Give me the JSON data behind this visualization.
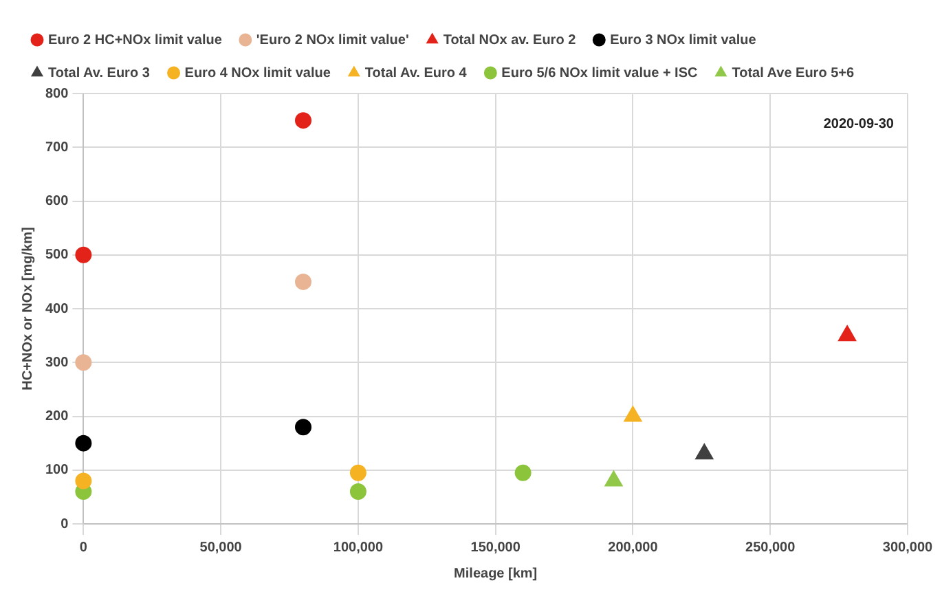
{
  "chart_data": {
    "type": "scatter",
    "xlabel": "Mileage [km]",
    "ylabel": "HC+NOx or NOx [mg/km]",
    "xlim": [
      0,
      300000
    ],
    "xticks": [
      {
        "value": 0,
        "label": "0"
      },
      {
        "value": 50000,
        "label": "50,000"
      },
      {
        "value": 100000,
        "label": "100,000"
      },
      {
        "value": 150000,
        "label": "150,000"
      },
      {
        "value": 200000,
        "label": "200,000"
      },
      {
        "value": 250000,
        "label": "250,000"
      },
      {
        "value": 300000,
        "label": "300,000"
      }
    ],
    "ylim": [
      0,
      800
    ],
    "yticks": [
      0,
      100,
      200,
      300,
      400,
      500,
      600,
      700,
      800
    ],
    "grid": true,
    "legend": "top",
    "annotations": [
      "2020-09-30"
    ],
    "series": [
      {
        "name": "Euro 2 HC+NOx limit value",
        "color": "#e32219",
        "marker": "circle",
        "x": [
          0,
          80000
        ],
        "values": [
          500,
          750
        ]
      },
      {
        "name": "'Euro 2 NOx limit value'",
        "color": "#e8b494",
        "marker": "circle",
        "x": [
          0,
          80000
        ],
        "values": [
          300,
          450
        ]
      },
      {
        "name": "Total NOx av. Euro 2",
        "color": "#e32219",
        "marker": "triangle",
        "x": [
          278000
        ],
        "values": [
          350
        ]
      },
      {
        "name": "Euro 3 NOx limit value",
        "color": "#000000",
        "marker": "circle",
        "x": [
          0,
          80000
        ],
        "values": [
          150,
          180
        ]
      },
      {
        "name": "Total Av. Euro 3",
        "color": "#404040",
        "marker": "triangle",
        "x": [
          226000
        ],
        "values": [
          130
        ]
      },
      {
        "name": "Euro 4 NOx limit value",
        "color": "#f5b324",
        "marker": "circle",
        "x": [
          0,
          100000
        ],
        "values": [
          80,
          95
        ]
      },
      {
        "name": "Total Av. Euro 4",
        "color": "#f5b324",
        "marker": "triangle",
        "x": [
          200000
        ],
        "values": [
          200
        ]
      },
      {
        "name": "Euro 5/6 NOx limit value + ISC",
        "color": "#8cc43c",
        "marker": "circle",
        "x": [
          0,
          100000,
          160000
        ],
        "values": [
          60,
          60,
          95
        ]
      },
      {
        "name": "Total Ave Euro 5+6",
        "color": "#92c84a",
        "marker": "triangle",
        "x": [
          193000
        ],
        "values": [
          80
        ]
      }
    ]
  }
}
